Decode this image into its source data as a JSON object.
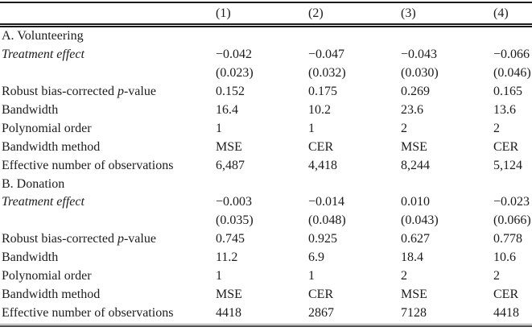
{
  "table": {
    "column_headers": [
      "(1)",
      "(2)",
      "(3)",
      "(4)"
    ],
    "panels": [
      {
        "title": "A. Volunteering",
        "rows": [
          {
            "label_parts": [
              {
                "text": "Treatment effect",
                "italic": true
              }
            ],
            "values": [
              "−0.042",
              "−0.047",
              "−0.043",
              "−0.066"
            ]
          },
          {
            "label_parts": [],
            "values": [
              "(0.023)",
              "(0.032)",
              "(0.030)",
              "(0.046)"
            ]
          },
          {
            "label_parts": [
              {
                "text": "Robust bias-corrected ",
                "italic": false
              },
              {
                "text": "p",
                "italic": true
              },
              {
                "text": "-value",
                "italic": false
              }
            ],
            "values": [
              "0.152",
              "0.175",
              "0.269",
              "0.165"
            ]
          },
          {
            "label_parts": [
              {
                "text": "Bandwidth",
                "italic": false
              }
            ],
            "values": [
              "16.4",
              "10.2",
              "23.6",
              "13.6"
            ]
          },
          {
            "label_parts": [
              {
                "text": "Polynomial order",
                "italic": false
              }
            ],
            "values": [
              "1",
              "1",
              "2",
              "2"
            ]
          },
          {
            "label_parts": [
              {
                "text": "Bandwidth method",
                "italic": false
              }
            ],
            "values": [
              "MSE",
              "CER",
              "MSE",
              "CER"
            ]
          },
          {
            "label_parts": [
              {
                "text": "Effective number of observations",
                "italic": false
              }
            ],
            "values": [
              "6,487",
              "4,418",
              "8,244",
              "5,124"
            ]
          }
        ]
      },
      {
        "title": "B. Donation",
        "rows": [
          {
            "label_parts": [
              {
                "text": "Treatment effect",
                "italic": true
              }
            ],
            "values": [
              "−0.003",
              "−0.014",
              "0.010",
              "−0.023"
            ]
          },
          {
            "label_parts": [],
            "values": [
              "(0.035)",
              "(0.048)",
              "(0.043)",
              "(0.066)"
            ]
          },
          {
            "label_parts": [
              {
                "text": "Robust bias-corrected ",
                "italic": false
              },
              {
                "text": "p",
                "italic": true
              },
              {
                "text": "-value",
                "italic": false
              }
            ],
            "values": [
              "0.745",
              "0.925",
              "0.627",
              "0.778"
            ]
          },
          {
            "label_parts": [
              {
                "text": "Bandwidth",
                "italic": false
              }
            ],
            "values": [
              "11.2",
              "6.9",
              "18.4",
              "10.6"
            ]
          },
          {
            "label_parts": [
              {
                "text": "Polynomial order",
                "italic": false
              }
            ],
            "values": [
              "1",
              "1",
              "2",
              "2"
            ]
          },
          {
            "label_parts": [
              {
                "text": "Bandwidth method",
                "italic": false
              }
            ],
            "values": [
              "MSE",
              "CER",
              "MSE",
              "CER"
            ]
          },
          {
            "label_parts": [
              {
                "text": "Effective number of observations",
                "italic": false
              }
            ],
            "values": [
              "4418",
              "2867",
              "7128",
              "4418"
            ]
          }
        ]
      }
    ]
  }
}
